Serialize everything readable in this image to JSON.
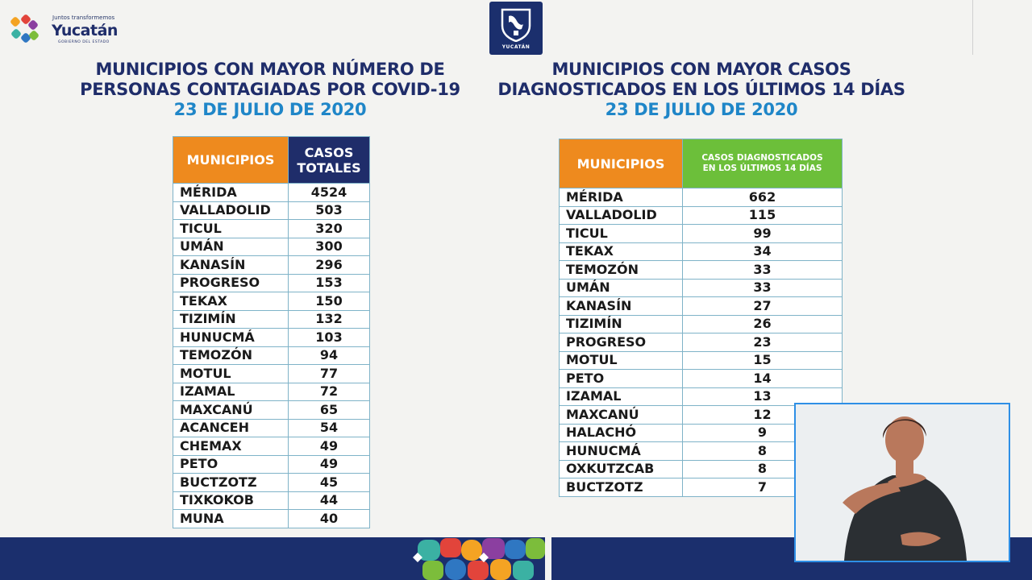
{
  "header": {
    "logo": {
      "tagline": "Juntos transformemos",
      "name": "Yucatán",
      "subline": "GOBIERNO DEL ESTADO"
    },
    "crest": {
      "label": "YUCATÁN",
      "icon": "state-crest-icon"
    }
  },
  "left_panel": {
    "title_line1": "MUNICIPIOS CON MAYOR NÚMERO DE",
    "title_line2": "PERSONAS CONTAGIADAS POR COVID-19",
    "date": "23 DE JULIO DE 2020",
    "header_municipio": "MUNICIPIOS",
    "header_value_line1": "CASOS",
    "header_value_line2": "TOTALES",
    "rows": [
      {
        "municipio": "MÉRIDA",
        "valor": "4524"
      },
      {
        "municipio": "VALLADOLID",
        "valor": "503"
      },
      {
        "municipio": "TICUL",
        "valor": "320"
      },
      {
        "municipio": "UMÁN",
        "valor": "300"
      },
      {
        "municipio": "KANASÍN",
        "valor": "296"
      },
      {
        "municipio": "PROGRESO",
        "valor": "153"
      },
      {
        "municipio": "TEKAX",
        "valor": "150"
      },
      {
        "municipio": "TIZIMÍN",
        "valor": "132"
      },
      {
        "municipio": "HUNUCMÁ",
        "valor": "103"
      },
      {
        "municipio": "TEMOZÓN",
        "valor": "94"
      },
      {
        "municipio": "MOTUL",
        "valor": "77"
      },
      {
        "municipio": "IZAMAL",
        "valor": "72"
      },
      {
        "municipio": "MAXCANÚ",
        "valor": "65"
      },
      {
        "municipio": "ACANCEH",
        "valor": "54"
      },
      {
        "municipio": "CHEMAX",
        "valor": "49"
      },
      {
        "municipio": "PETO",
        "valor": "49"
      },
      {
        "municipio": "BUCTZOTZ",
        "valor": "45"
      },
      {
        "municipio": "TIXKOKOB",
        "valor": "44"
      },
      {
        "municipio": "MUNA",
        "valor": "40"
      }
    ]
  },
  "right_panel": {
    "title_line1": "MUNICIPIOS CON MAYOR CASOS",
    "title_line2": "DIAGNOSTICADOS EN LOS ÚLTIMOS 14 DÍAS",
    "date": "23 DE JULIO DE 2020",
    "header_municipio": "MUNICIPIOS",
    "header_value_line1": "CASOS DIAGNOSTICADOS",
    "header_value_line2": "EN LOS ÚLTIMOS 14 DÍAS",
    "rows": [
      {
        "municipio": "MÉRIDA",
        "valor": "662"
      },
      {
        "municipio": "VALLADOLID",
        "valor": "115"
      },
      {
        "municipio": "TICUL",
        "valor": "99"
      },
      {
        "municipio": "TEKAX",
        "valor": "34"
      },
      {
        "municipio": "TEMOZÓN",
        "valor": "33"
      },
      {
        "municipio": "UMÁN",
        "valor": "33"
      },
      {
        "municipio": "KANASÍN",
        "valor": "27"
      },
      {
        "municipio": "TIZIMÍN",
        "valor": "26"
      },
      {
        "municipio": "PROGRESO",
        "valor": "23"
      },
      {
        "municipio": "MOTUL",
        "valor": "15"
      },
      {
        "municipio": "PETO",
        "valor": "14"
      },
      {
        "municipio": "IZAMAL",
        "valor": "13"
      },
      {
        "municipio": "MAXCANÚ",
        "valor": "12"
      },
      {
        "municipio": "HALACHÓ",
        "valor": "9"
      },
      {
        "municipio": "HUNUCMÁ",
        "valor": "8"
      },
      {
        "municipio": "OXKUTZCAB",
        "valor": "8"
      },
      {
        "municipio": "BUCTZOTZ",
        "valor": "7"
      }
    ]
  },
  "colors": {
    "navy": "#1b2f6d",
    "accent_blue": "#1f86c8",
    "header_orange": "#ee8a1e",
    "header_green": "#6cbf3a",
    "interpreter_border": "#2e8fe6"
  },
  "interpreter": {
    "icon": "sign-language-interpreter-image"
  }
}
